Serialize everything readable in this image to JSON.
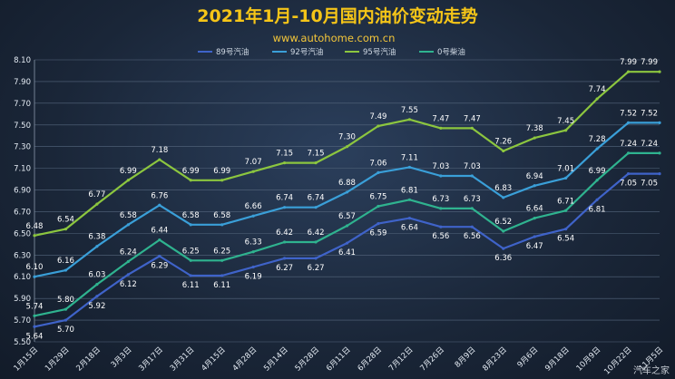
{
  "header": {
    "title": "2021年1月-10月国内油价变动走势",
    "site": "www.autohome.com.cn",
    "watermark": "汽车之家"
  },
  "colors": {
    "title": "#f5c518",
    "grid": "#56677e"
  },
  "chart_data": {
    "type": "line",
    "categories": [
      "1月15日",
      "1月29日",
      "2月18日",
      "3月3日",
      "3月17日",
      "3月31日",
      "4月15日",
      "4月28日",
      "5月14日",
      "5月28日",
      "6月11日",
      "6月28日",
      "7月12日",
      "7月26日",
      "8月9日",
      "8月23日",
      "9月6日",
      "9月18日",
      "10月9日",
      "10月22日",
      "11月5日"
    ],
    "ylim": [
      5.5,
      8.1
    ],
    "yticks": [
      5.5,
      5.7,
      5.9,
      6.1,
      6.3,
      6.5,
      6.7,
      6.9,
      7.1,
      7.3,
      7.5,
      7.7,
      7.9,
      8.1
    ],
    "grid": true,
    "legend_position": "top",
    "series": [
      {
        "name": "89号汽油",
        "color": "#3f63c9",
        "label_pos": "below",
        "values": [
          5.64,
          5.7,
          5.92,
          6.12,
          6.29,
          6.11,
          6.11,
          6.19,
          6.27,
          6.27,
          6.41,
          6.59,
          6.64,
          6.56,
          6.56,
          6.36,
          6.47,
          6.54,
          6.81,
          7.05,
          7.05
        ]
      },
      {
        "name": "92号汽油",
        "color": "#3a9fd8",
        "label_pos": "above",
        "values": [
          6.1,
          6.16,
          6.38,
          6.58,
          6.76,
          6.58,
          6.58,
          6.66,
          6.74,
          6.74,
          6.88,
          7.06,
          7.11,
          7.03,
          7.03,
          6.83,
          6.94,
          7.01,
          7.28,
          7.52,
          7.52
        ]
      },
      {
        "name": "95号汽油",
        "color": "#8cc63f",
        "label_pos": "above",
        "values": [
          6.48,
          6.54,
          6.77,
          6.99,
          7.18,
          6.99,
          6.99,
          7.07,
          7.15,
          7.15,
          7.3,
          7.49,
          7.55,
          7.47,
          7.47,
          7.26,
          7.38,
          7.45,
          7.74,
          7.99,
          7.99
        ]
      },
      {
        "name": "0号柴油",
        "color": "#2fb38f",
        "label_pos": "above",
        "values": [
          5.74,
          5.8,
          6.03,
          6.24,
          6.44,
          6.25,
          6.25,
          6.33,
          6.42,
          6.42,
          6.57,
          6.75,
          6.81,
          6.73,
          6.73,
          6.52,
          6.64,
          6.71,
          6.99,
          7.24,
          7.24
        ]
      }
    ]
  }
}
